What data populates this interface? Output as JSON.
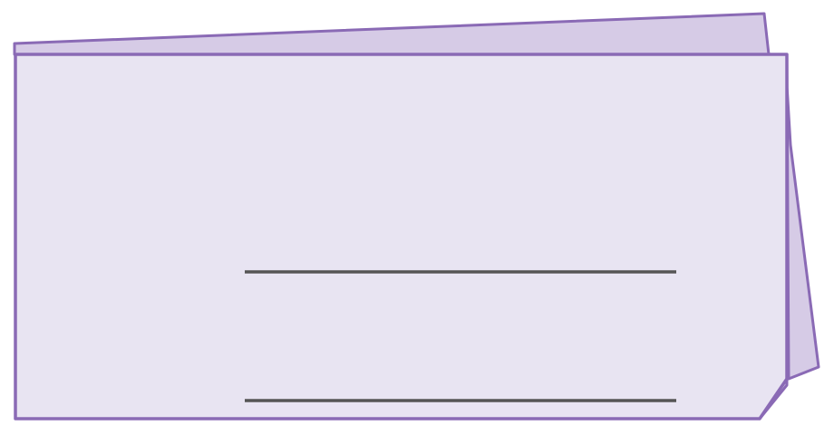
{
  "card": {
    "front_color": "#e8e4f2",
    "back_color": "#d6cbe6",
    "border_color": "#8a6ab5",
    "line_color": "#555555",
    "writing_lines": [
      {
        "label": ""
      },
      {
        "label": ""
      }
    ]
  }
}
